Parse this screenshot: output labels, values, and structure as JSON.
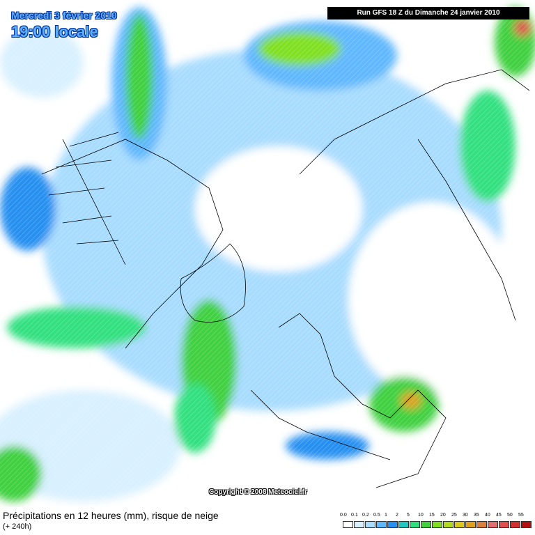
{
  "header": {
    "date": "Mercredi 3 février 2010",
    "time": "19:00 locale",
    "run": "Run GFS 18 Z du Dimanche 24 janvier 2010"
  },
  "copyright": "Copyright © 2008 Meteociel.fr",
  "caption": {
    "title": "Précipitations en 12 heures (mm), risque de neige",
    "lead": "(+ 240h)"
  },
  "legend": [
    {
      "label": "0.0",
      "color": "#ffffff"
    },
    {
      "label": "0.1",
      "color": "#d8f0ff"
    },
    {
      "label": "0.2",
      "color": "#a8dcff"
    },
    {
      "label": "0.5",
      "color": "#60b8ff"
    },
    {
      "label": "1",
      "color": "#2890f0"
    },
    {
      "label": "2",
      "color": "#20c8c0"
    },
    {
      "label": "5",
      "color": "#30e080"
    },
    {
      "label": "10",
      "color": "#40d040"
    },
    {
      "label": "15",
      "color": "#80e020"
    },
    {
      "label": "20",
      "color": "#b0d820"
    },
    {
      "label": "25",
      "color": "#d8c820"
    },
    {
      "label": "30",
      "color": "#e0a020"
    },
    {
      "label": "35",
      "color": "#d88040"
    },
    {
      "label": "40",
      "color": "#e07070"
    },
    {
      "label": "45",
      "color": "#e05050"
    },
    {
      "label": "50",
      "color": "#d03030"
    },
    {
      "label": "55",
      "color": "#b01010"
    }
  ]
}
